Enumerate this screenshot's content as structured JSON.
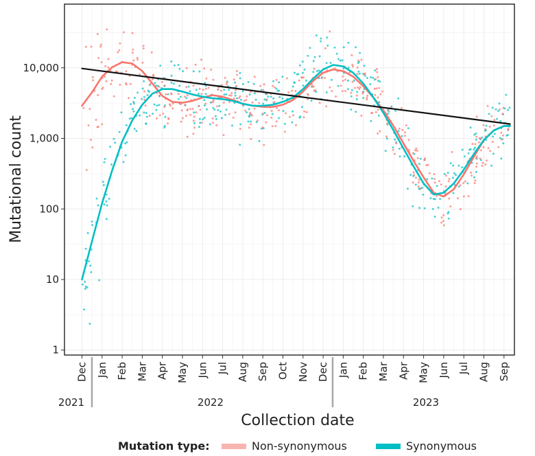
{
  "chart_data": {
    "type": "scatter",
    "xlabel": "Collection date",
    "ylabel": "Mutational count",
    "yscale": "log10",
    "ylim": [
      0.85,
      80000
    ],
    "y_ticks": [
      {
        "value": 1,
        "label": "1"
      },
      {
        "value": 10,
        "label": "10"
      },
      {
        "value": 100,
        "label": "100"
      },
      {
        "value": 1000,
        "label": "1,000"
      },
      {
        "value": 10000,
        "label": "10,000"
      }
    ],
    "month_ticks": [
      "Dec",
      "Jan",
      "Feb",
      "Mar",
      "Apr",
      "May",
      "Jun",
      "Jul",
      "Aug",
      "Sep",
      "Oct",
      "Nov",
      "Dec",
      "Jan",
      "Feb",
      "Mar",
      "Apr",
      "May",
      "Jun",
      "Jul",
      "Aug",
      "Sep"
    ],
    "years": [
      "2021",
      "2022",
      "2023"
    ],
    "grid": true,
    "legend": {
      "title": "Mutation type:",
      "position": "bottom",
      "entries": [
        {
          "label": "Non-synonymous",
          "color": "#f8766d"
        },
        {
          "label": "Synonymous",
          "color": "#00bfc4"
        }
      ]
    },
    "colors": {
      "non_synonymous": "#f8766d",
      "synonymous": "#00bfc4",
      "trend": "#111111",
      "grid": "#ececec"
    },
    "series": [
      {
        "name": "Non-synonymous smooth",
        "x": [
          0,
          0.5,
          1,
          1.5,
          2,
          2.5,
          3,
          3.5,
          4,
          4.5,
          5,
          5.5,
          6,
          6.5,
          7,
          7.5,
          8,
          8.5,
          9,
          9.5,
          10,
          10.5,
          11,
          11.5,
          12,
          12.5,
          13,
          13.5,
          14,
          14.5,
          15,
          15.5,
          16,
          16.5,
          17,
          17.5,
          18,
          18.5,
          19,
          19.5,
          20,
          20.5,
          21,
          21.3
        ],
        "values": [
          2900,
          4500,
          7500,
          10200,
          12000,
          11500,
          9000,
          6000,
          4000,
          3300,
          3200,
          3400,
          3800,
          4100,
          3900,
          3500,
          3100,
          2900,
          2800,
          2800,
          3000,
          3500,
          4600,
          6500,
          8500,
          9500,
          9000,
          7500,
          5500,
          3800,
          2500,
          1500,
          850,
          480,
          280,
          170,
          150,
          190,
          310,
          550,
          950,
          1300,
          1500,
          1500
        ]
      },
      {
        "name": "Synonymous smooth",
        "x": [
          0,
          0.5,
          1,
          1.5,
          2,
          2.5,
          3,
          3.5,
          4,
          4.5,
          5,
          5.5,
          6,
          6.5,
          7,
          7.5,
          8,
          8.5,
          9,
          9.5,
          10,
          10.5,
          11,
          11.5,
          12,
          12.5,
          13,
          13.5,
          14,
          14.5,
          15,
          15.5,
          16,
          16.5,
          17,
          17.5,
          18,
          18.5,
          19,
          19.5,
          20,
          20.5,
          21,
          21.3
        ],
        "values": [
          10,
          35,
          120,
          350,
          900,
          1800,
          3000,
          4300,
          5000,
          5000,
          4600,
          4200,
          3900,
          3700,
          3600,
          3400,
          3100,
          2900,
          2900,
          3000,
          3300,
          3800,
          5000,
          7000,
          9500,
          11000,
          10500,
          8500,
          6000,
          3800,
          2300,
          1300,
          720,
          400,
          230,
          160,
          170,
          230,
          360,
          600,
          950,
          1300,
          1500,
          1500
        ]
      },
      {
        "name": "Trend",
        "x": [
          0,
          21.3
        ],
        "values": [
          9800,
          1600
        ]
      }
    ]
  }
}
